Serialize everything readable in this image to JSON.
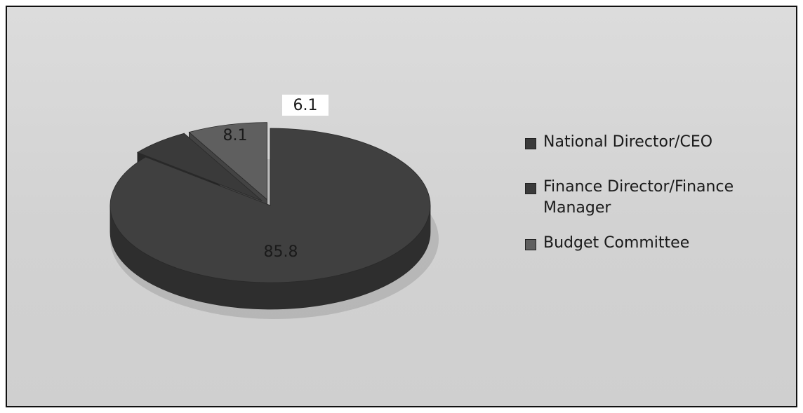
{
  "chart_data": {
    "type": "pie",
    "categories": [
      "National Director/CEO",
      "Finance Director/Finance Manager",
      "Budget Committee"
    ],
    "values": [
      85.8,
      6.1,
      8.1
    ],
    "data_labels": [
      "85.8",
      "6.1",
      "8.1"
    ],
    "three_d": true,
    "legend_position": "right",
    "colors": [
      "#404040",
      "#3a3a3a",
      "#5f5f5f"
    ],
    "legend": [
      {
        "label": "National Director/CEO",
        "color": "#3a3a3a"
      },
      {
        "label": "Finance Director/Finance Manager",
        "color": "#3a3a3a"
      },
      {
        "label": "Budget Committee",
        "color": "#5f5f5f"
      }
    ]
  }
}
